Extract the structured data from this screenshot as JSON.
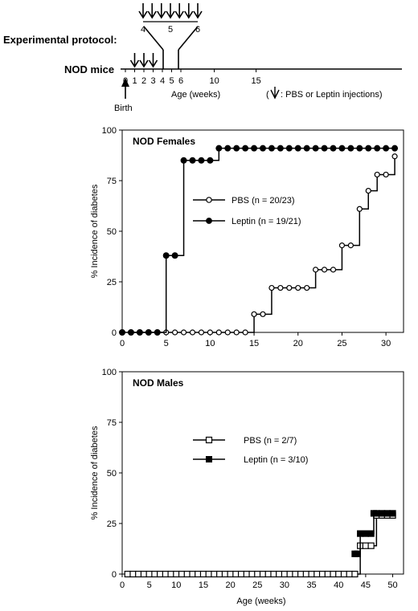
{
  "protocol": {
    "title": "Experimental protocol:",
    "timeline_label": "NOD mice",
    "ticks": [
      "0",
      "1",
      "2",
      "3",
      "4",
      "5",
      "6",
      "10",
      "15"
    ],
    "zoom_ticks": [
      "4",
      "5",
      "6"
    ],
    "birth_label": "Birth",
    "axis_label": "Age (weeks)",
    "legend_open": "(",
    "legend_text": ": PBS or Leptin injections)",
    "injection_weeks_main": [
      1,
      2,
      3
    ],
    "injection_weeks_zoom": [
      4,
      4.33,
      4.67,
      5,
      5.33,
      5.67,
      6
    ]
  },
  "chart_data": [
    {
      "type": "line",
      "step": true,
      "title": "NOD Females",
      "xlabel": "",
      "ylabel": "% Incidence of diabetes",
      "xlim": [
        0,
        32
      ],
      "ylim": [
        0,
        100
      ],
      "xticks": [
        0,
        5,
        10,
        15,
        20,
        25,
        30
      ],
      "yticks": [
        0,
        25,
        50,
        75,
        100
      ],
      "grid": false,
      "legend_position": "center-right",
      "series": [
        {
          "name": "PBS (n = 20/23)",
          "marker": "open-circle",
          "x": [
            1,
            2,
            3,
            4,
            5,
            6,
            7,
            8,
            9,
            10,
            11,
            12,
            13,
            14,
            15,
            16,
            17,
            18,
            19,
            20,
            21,
            22,
            23,
            24,
            25,
            26,
            27,
            28,
            29,
            30,
            31
          ],
          "y": [
            0,
            0,
            0,
            0,
            0,
            0,
            0,
            0,
            0,
            0,
            0,
            0,
            0,
            0,
            9,
            9,
            22,
            22,
            22,
            22,
            22,
            31,
            31,
            31,
            43,
            43,
            61,
            70,
            78,
            78,
            87
          ]
        },
        {
          "name": "Leptin (n = 19/21)",
          "marker": "filled-circle",
          "x": [
            0,
            1,
            2,
            3,
            4,
            5,
            6,
            7,
            8,
            9,
            10,
            11,
            12,
            13,
            14,
            15,
            16,
            17,
            18,
            19,
            20,
            21,
            22,
            23,
            24,
            25,
            26,
            27,
            28,
            29,
            30,
            31
          ],
          "y": [
            0,
            0,
            0,
            0,
            0,
            38,
            38,
            85,
            85,
            85,
            85,
            91,
            91,
            91,
            91,
            91,
            91,
            91,
            91,
            91,
            91,
            91,
            91,
            91,
            91,
            91,
            91,
            91,
            91,
            91,
            91,
            91
          ]
        }
      ]
    },
    {
      "type": "line",
      "step": true,
      "title": "NOD Males",
      "xlabel": "Age (weeks)",
      "ylabel": "% Incidence of diabetes",
      "xlim": [
        0,
        52
      ],
      "ylim": [
        0,
        100
      ],
      "xticks": [
        0,
        5,
        10,
        15,
        20,
        25,
        30,
        35,
        40,
        45,
        50
      ],
      "yticks": [
        0,
        25,
        50,
        75,
        100
      ],
      "grid": false,
      "legend_position": "center-right",
      "series": [
        {
          "name": "PBS (n = 2/7)",
          "marker": "open-square",
          "x": [
            1,
            2,
            3,
            4,
            5,
            6,
            7,
            8,
            9,
            10,
            11,
            12,
            13,
            14,
            15,
            16,
            17,
            18,
            19,
            20,
            21,
            22,
            23,
            24,
            25,
            26,
            27,
            28,
            29,
            30,
            31,
            32,
            33,
            34,
            35,
            36,
            37,
            38,
            39,
            40,
            41,
            42,
            43,
            44,
            45,
            46,
            47,
            48,
            49,
            50
          ],
          "y": [
            0,
            0,
            0,
            0,
            0,
            0,
            0,
            0,
            0,
            0,
            0,
            0,
            0,
            0,
            0,
            0,
            0,
            0,
            0,
            0,
            0,
            0,
            0,
            0,
            0,
            0,
            0,
            0,
            0,
            0,
            0,
            0,
            0,
            0,
            0,
            0,
            0,
            0,
            0,
            0,
            0,
            0,
            0,
            14,
            14,
            14,
            29,
            29,
            29,
            29
          ]
        },
        {
          "name": "Leptin (n = 3/10)",
          "marker": "filled-square",
          "x": [
            43,
            43.5,
            44,
            45,
            46,
            46.5,
            47,
            48,
            49,
            50
          ],
          "y": [
            10,
            10,
            20,
            20,
            20,
            30,
            30,
            30,
            30,
            30
          ]
        }
      ]
    }
  ]
}
